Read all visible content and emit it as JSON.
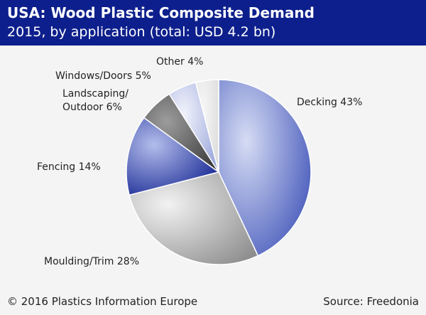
{
  "header": {
    "title": "USA: Wood Plastic Composite Demand",
    "subtitle": "2015, by application (total: USD 4.2 bn)"
  },
  "chart_data": {
    "type": "pie",
    "title": "USA: Wood Plastic Composite Demand",
    "subtitle": "2015, by application (total: USD 4.2 bn)",
    "slices": [
      {
        "label": "Decking",
        "value": 43,
        "display": "Decking 43%",
        "color_dark": "#3f53b8",
        "color_light": "#d6dcf4"
      },
      {
        "label": "Moulding/Trim",
        "value": 28,
        "display": "Moulding/Trim 28%",
        "color_dark": "#8e8e8e",
        "color_light": "#f2f2f2"
      },
      {
        "label": "Fencing",
        "value": 14,
        "display": "Fencing 14%",
        "color_dark": "#0e1f8f",
        "color_light": "#b3bdeb"
      },
      {
        "label": "Landscaping/ Outdoor",
        "value": 6,
        "display": [
          "Landscaping/",
          "Outdoor 6%"
        ],
        "color_dark": "#3a3a3a",
        "color_light": "#9c9c9c"
      },
      {
        "label": "Windows/Doors",
        "value": 5,
        "display": "Windows/Doors 5%",
        "color_dark": "#9aa6da",
        "color_light": "#f0f2fb"
      },
      {
        "label": "Other",
        "value": 4,
        "display": "Other 4%",
        "color_dark": "#dcdcdc",
        "color_light": "#f7f7f7"
      }
    ]
  },
  "footer": {
    "copyright": "© 2016 Plastics Information Europe",
    "source": "Source: Freedonia"
  }
}
